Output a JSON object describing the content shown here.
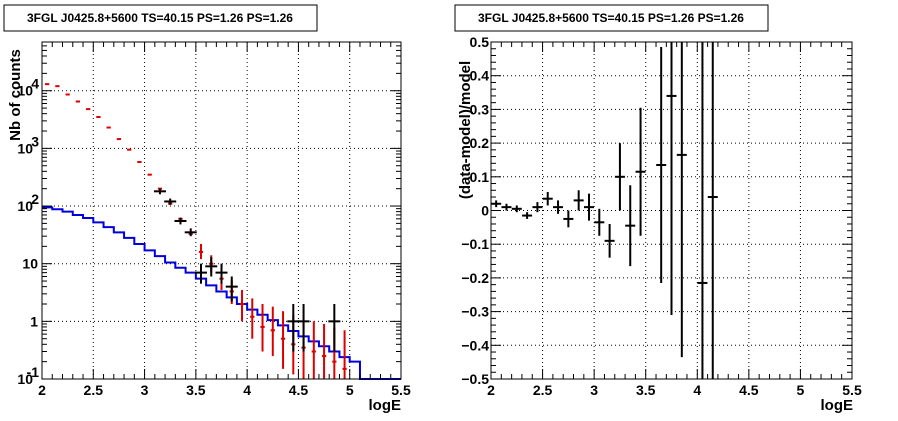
{
  "chart_data": [
    {
      "type": "histogram",
      "title": "3FGL J0425.8+5600 TS=40.15 PS=1.26 PS=1.26",
      "xlabel": "logE",
      "ylabel": "Nb of counts",
      "xlim": [
        2,
        5.5
      ],
      "ylim": [
        0.1,
        70000
      ],
      "yscale": "log",
      "grid": true,
      "x_ticks": [
        "2",
        "2.5",
        "3",
        "3.5",
        "4",
        "4.5",
        "5",
        "5.5"
      ],
      "y_ticks": [
        {
          "v": 0.1,
          "base": "10",
          "exp": "-1"
        },
        {
          "v": 1,
          "base": "1",
          "exp": ""
        },
        {
          "v": 10,
          "base": "10",
          "exp": ""
        },
        {
          "v": 100,
          "base": "10",
          "exp": "2"
        },
        {
          "v": 1000,
          "base": "10",
          "exp": "3"
        },
        {
          "v": 10000,
          "base": "10",
          "exp": "4"
        }
      ],
      "colors": {
        "total_model": "#dd0000",
        "component_model": "#0000dd",
        "data": "#000000"
      },
      "bin_edges": [
        2.0,
        2.1,
        2.2,
        2.3,
        2.4,
        2.5,
        2.6,
        2.7,
        2.8,
        2.9,
        3.0,
        3.1,
        3.2,
        3.3,
        3.4,
        3.5,
        3.6,
        3.7,
        3.8,
        3.9,
        4.0,
        4.1,
        4.2,
        4.3,
        4.4,
        4.5,
        4.6,
        4.7,
        4.8,
        4.9,
        5.0,
        5.1,
        5.2,
        5.3,
        5.4,
        5.5
      ],
      "series": [
        {
          "role": "component_model",
          "values": [
            95,
            88,
            80,
            70,
            62,
            52,
            43,
            35,
            28,
            22,
            17,
            13.5,
            10.5,
            8.5,
            7,
            5.5,
            4.2,
            3.3,
            2.6,
            2,
            1.6,
            1.3,
            1.05,
            0.85,
            0.68,
            0.55,
            0.45,
            0.37,
            0.3,
            0.24,
            0.2,
            0.1,
            0.1,
            0.1,
            0.1
          ]
        },
        {
          "role": "total_model",
          "values": [
            13000,
            12000,
            8600,
            6500,
            4800,
            3500,
            2300,
            1450,
            950,
            580,
            350,
            200,
            110,
            60,
            33,
            16,
            10,
            5.5,
            3.3,
            2,
            1.2,
            0.8,
            0.7,
            0.5,
            0.4,
            0.35,
            0.3,
            0.25,
            0.2,
            0.15,
            null,
            null,
            null,
            null,
            null
          ],
          "err_lo": [
            null,
            null,
            null,
            null,
            null,
            null,
            null,
            null,
            null,
            null,
            null,
            null,
            null,
            null,
            null,
            12,
            7,
            3.5,
            2,
            1,
            0.5,
            0.3,
            0.25,
            0.15,
            0.12,
            0.1,
            0.1,
            0.1,
            0.1,
            0.1,
            null,
            null,
            null,
            null,
            null
          ],
          "err_hi": [
            null,
            null,
            null,
            null,
            null,
            null,
            null,
            null,
            null,
            null,
            null,
            null,
            null,
            null,
            null,
            22,
            14,
            8,
            5.2,
            3.5,
            2.5,
            2,
            1.8,
            1.5,
            1.3,
            1.1,
            1,
            0.9,
            0.8,
            0.7,
            null,
            null,
            null,
            null,
            null
          ]
        },
        {
          "role": "data",
          "x": [
            3.15,
            3.25,
            3.35,
            3.45,
            3.55,
            3.65,
            3.75,
            3.85,
            4.45,
            4.55,
            4.85
          ],
          "y": [
            180,
            120,
            55,
            35,
            7,
            9,
            7,
            4,
            1,
            1,
            1
          ],
          "y_lo": [
            160,
            105,
            48,
            30,
            4.5,
            6,
            4.5,
            2.2,
            0.3,
            0.3,
            0.3
          ],
          "y_hi": [
            200,
            135,
            63,
            41,
            10,
            13,
            10,
            6,
            2,
            2,
            2
          ]
        }
      ]
    },
    {
      "type": "scatter",
      "title": "3FGL J0425.8+5600 TS=40.15 PS=1.26 PS=1.26",
      "xlabel": "logE",
      "ylabel": "(data-model)/model",
      "xlim": [
        2,
        5.5
      ],
      "ylim": [
        -0.5,
        0.5
      ],
      "grid": true,
      "x_ticks": [
        "2",
        "2.5",
        "3",
        "3.5",
        "4",
        "4.5",
        "5",
        "5.5"
      ],
      "y_ticks": [
        "−0.5",
        "−0.4",
        "−0.3",
        "−0.2",
        "−0.1",
        "0",
        "0.1",
        "0.2",
        "0.3",
        "0.4",
        "0.5"
      ],
      "colors": {
        "points": "#000000"
      },
      "x": [
        2.05,
        2.15,
        2.25,
        2.35,
        2.45,
        2.55,
        2.65,
        2.75,
        2.85,
        2.95,
        3.05,
        3.15,
        3.25,
        3.35,
        3.45,
        3.65,
        3.75,
        3.85,
        4.05,
        4.15
      ],
      "y": [
        0.02,
        0.01,
        0.005,
        -0.015,
        0.01,
        0.035,
        0.01,
        -0.025,
        0.03,
        0.01,
        -0.035,
        -0.09,
        0.1,
        -0.045,
        0.115,
        0.135,
        0.34,
        0.165,
        -0.215,
        0.04
      ],
      "err": [
        0.01,
        0.01,
        0.01,
        0.01,
        0.015,
        0.02,
        0.02,
        0.025,
        0.03,
        0.04,
        0.04,
        0.05,
        0.1,
        0.12,
        0.19,
        0.35,
        0.65,
        0.6,
        0.9,
        0.9
      ]
    }
  ]
}
